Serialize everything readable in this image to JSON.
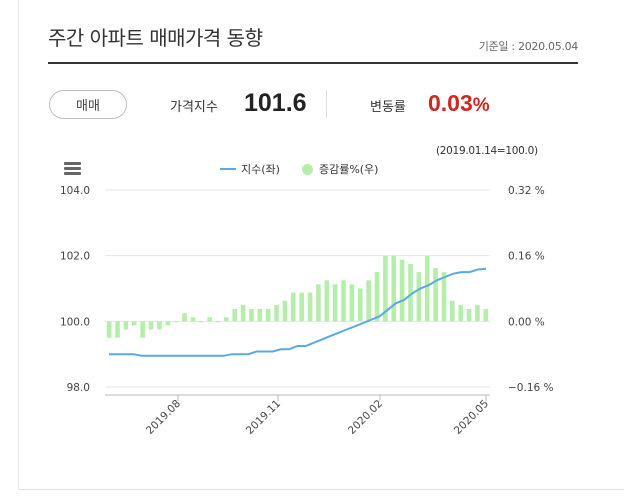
{
  "header": {
    "title": "주간 아파트 매매가격 동향",
    "base_date": "기준일 : 2020.05.04"
  },
  "controls": {
    "type_label": "매매"
  },
  "metrics": {
    "index_label": "가격지수",
    "index_value": "101.6",
    "change_label": "변동률",
    "change_value": "0.03",
    "change_unit": "%"
  },
  "colors": {
    "line": "#5ba8e8",
    "bar": "#b5eeaa",
    "change_value": "#d0281e"
  },
  "chart_data": {
    "type": "bar+line",
    "base_note": "(2019.01.14=100.0)",
    "legend": [
      "지수(좌)",
      "증감률%(우)"
    ],
    "y_left": {
      "ticks": [
        "104.0",
        "102.0",
        "100.0",
        "98.0"
      ],
      "min": 98,
      "max": 104
    },
    "y_right": {
      "ticks": [
        "0.32 %",
        "0.16 %",
        "0.00 %",
        "−0.16 %"
      ],
      "min": -0.16,
      "max": 0.32
    },
    "x_ticks": [
      "2019.08",
      "2019.11",
      "2020.02",
      "2020.05"
    ],
    "series": [
      {
        "name": "지수(좌)",
        "type": "line",
        "values": [
          99.0,
          99.0,
          99.0,
          99.0,
          98.95,
          98.95,
          98.95,
          98.95,
          98.95,
          98.95,
          98.95,
          98.95,
          98.95,
          98.95,
          98.95,
          99.0,
          99.0,
          99.0,
          99.08,
          99.08,
          99.08,
          99.15,
          99.15,
          99.25,
          99.25,
          99.35,
          99.45,
          99.55,
          99.65,
          99.75,
          99.85,
          99.95,
          100.05,
          100.15,
          100.35,
          100.55,
          100.65,
          100.85,
          101.0,
          101.1,
          101.25,
          101.35,
          101.45,
          101.5,
          101.5,
          101.58,
          101.6
        ]
      },
      {
        "name": "증감률%(우)",
        "type": "bar",
        "values": [
          -0.04,
          -0.04,
          -0.02,
          -0.01,
          -0.04,
          -0.02,
          -0.02,
          -0.01,
          0.0,
          0.02,
          0.01,
          0.0,
          0.01,
          0.0,
          0.01,
          0.03,
          0.04,
          0.03,
          0.03,
          0.03,
          0.04,
          0.05,
          0.07,
          0.07,
          0.07,
          0.09,
          0.1,
          0.09,
          0.1,
          0.09,
          0.08,
          0.1,
          0.12,
          0.16,
          0.16,
          0.15,
          0.14,
          0.12,
          0.16,
          0.13,
          0.12,
          0.05,
          0.04,
          0.03,
          0.04,
          0.03
        ]
      }
    ]
  }
}
